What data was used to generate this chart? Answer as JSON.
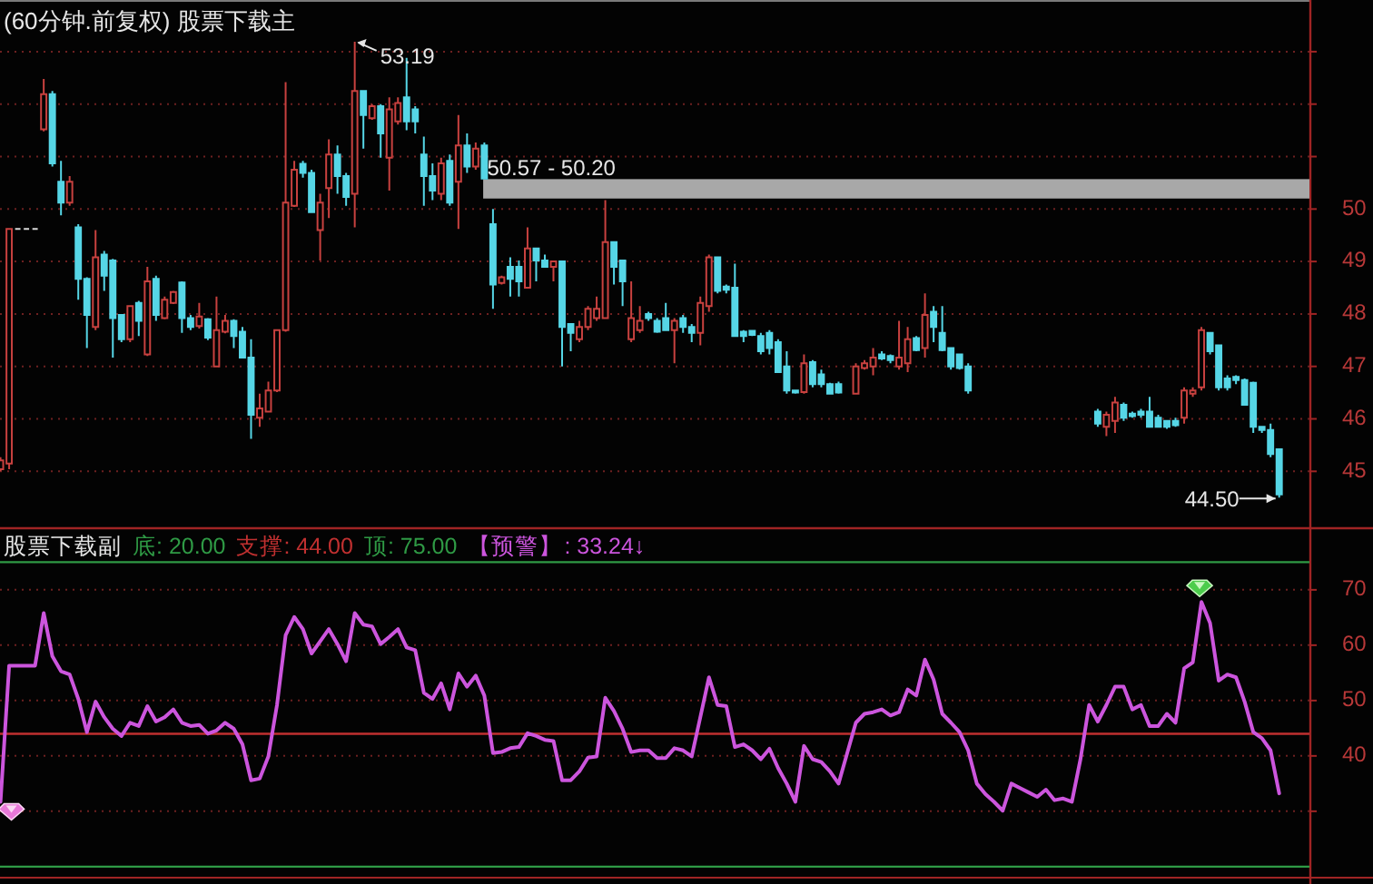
{
  "chart_data": [
    {
      "type": "candlestick",
      "title": "(60分钟.前复权) 股票下载主",
      "categories": [
        null,
        null,
        null,
        null,
        null,
        null,
        null,
        null,
        null,
        null,
        null,
        null,
        null,
        null,
        null,
        null,
        null,
        null,
        null,
        null,
        null,
        null,
        null,
        null,
        null,
        null,
        null,
        null,
        null,
        null,
        null,
        null,
        null,
        null,
        null,
        null,
        null,
        null,
        null,
        null,
        null,
        null,
        null,
        null,
        null,
        null,
        null,
        null,
        null,
        null,
        null,
        null,
        null,
        null,
        null,
        null,
        null,
        null,
        null,
        null,
        null,
        null,
        null,
        null,
        null,
        null,
        null,
        null,
        null,
        null,
        null,
        null,
        null,
        null,
        null,
        null,
        null,
        null,
        null,
        null,
        null,
        null,
        null,
        null,
        null,
        null,
        null,
        null,
        null,
        null,
        null,
        null,
        null,
        null,
        null,
        null,
        null,
        null,
        null,
        null,
        null,
        null,
        null,
        null,
        null,
        null,
        null,
        null,
        null,
        null,
        null,
        null,
        null,
        null,
        null,
        null,
        null,
        null,
        null,
        null,
        null,
        null,
        null,
        null,
        null,
        null,
        null,
        null,
        null,
        null,
        null,
        null,
        null,
        null,
        null,
        null,
        null,
        null,
        null,
        null,
        null,
        null,
        null,
        null,
        null,
        null,
        null,
        null,
        null
      ],
      "ohlc": [
        [
          45.04,
          45.27,
          45.0,
          45.21
        ],
        [
          45.15,
          49.62,
          45.04,
          49.62
        ],
        [
          49.62,
          49.62,
          49.62,
          49.62
        ],
        [
          49.62,
          49.62,
          49.62,
          49.62
        ],
        [
          49.62,
          49.62,
          49.62,
          49.62
        ],
        [
          51.52,
          52.48,
          51.48,
          52.19
        ],
        [
          52.19,
          52.25,
          50.81,
          50.87
        ],
        [
          50.52,
          50.92,
          49.88,
          50.12
        ],
        [
          50.12,
          50.63,
          50.06,
          50.52
        ],
        [
          49.65,
          49.71,
          48.27,
          48.67
        ],
        [
          48.67,
          48.7,
          47.35,
          47.98
        ],
        [
          47.75,
          49.6,
          47.69,
          49.08
        ],
        [
          49.13,
          49.2,
          48.44,
          48.73
        ],
        [
          49.02,
          49.05,
          47.17,
          47.92
        ],
        [
          47.98,
          48.0,
          47.46,
          47.52
        ],
        [
          47.52,
          48.15,
          47.46,
          48.15
        ],
        [
          48.21,
          48.25,
          47.58,
          47.87
        ],
        [
          47.23,
          48.9,
          47.2,
          48.62
        ],
        [
          48.67,
          48.73,
          47.87,
          47.98
        ],
        [
          47.92,
          48.33,
          47.9,
          48.27
        ],
        [
          48.21,
          48.44,
          48.19,
          48.42
        ],
        [
          48.6,
          48.62,
          47.64,
          47.92
        ],
        [
          47.92,
          47.98,
          47.69,
          47.75
        ],
        [
          47.77,
          48.21,
          47.72,
          47.95
        ],
        [
          47.9,
          47.92,
          47.5,
          47.55
        ],
        [
          47.0,
          48.33,
          47.0,
          47.69
        ],
        [
          47.66,
          47.98,
          47.63,
          47.87
        ],
        [
          47.87,
          47.9,
          47.35,
          47.58
        ],
        [
          47.66,
          47.75,
          47.17,
          47.17
        ],
        [
          47.17,
          47.52,
          45.62,
          46.08
        ],
        [
          46.02,
          46.48,
          45.85,
          46.2
        ],
        [
          46.14,
          46.71,
          46.14,
          46.54
        ],
        [
          46.54,
          47.69,
          46.51,
          47.69
        ],
        [
          47.69,
          52.42,
          47.66,
          50.12
        ],
        [
          50.06,
          50.92,
          50.04,
          50.75
        ],
        [
          50.86,
          50.92,
          50.6,
          50.69
        ],
        [
          50.69,
          50.75,
          49.94,
          49.94
        ],
        [
          49.6,
          50.29,
          49.02,
          50.12
        ],
        [
          50.4,
          51.33,
          49.83,
          51.04
        ],
        [
          51.04,
          51.21,
          50.29,
          50.63
        ],
        [
          50.63,
          50.69,
          50.06,
          50.23
        ],
        [
          50.29,
          53.19,
          49.65,
          52.25
        ],
        [
          52.25,
          52.25,
          51.15,
          51.79
        ],
        [
          51.73,
          52.0,
          51.7,
          51.96
        ],
        [
          51.96,
          52.0,
          50.98,
          51.44
        ],
        [
          50.98,
          52.13,
          50.35,
          51.9
        ],
        [
          51.67,
          52.13,
          51.61,
          52.02
        ],
        [
          52.13,
          52.88,
          51.5,
          51.67
        ],
        [
          51.9,
          51.96,
          51.44,
          51.67
        ],
        [
          51.04,
          51.38,
          50.06,
          50.63
        ],
        [
          50.63,
          50.87,
          50.17,
          50.35
        ],
        [
          50.29,
          50.98,
          50.17,
          50.87
        ],
        [
          50.92,
          51.04,
          50.06,
          50.12
        ],
        [
          50.52,
          51.79,
          49.62,
          51.21
        ],
        [
          51.21,
          51.44,
          50.69,
          50.81
        ],
        [
          50.81,
          51.27,
          50.75,
          51.15
        ],
        [
          51.21,
          51.27,
          50.58,
          50.58
        ],
        [
          49.71,
          50.0,
          48.1,
          48.56
        ],
        [
          48.59,
          48.73,
          48.56,
          48.7
        ],
        [
          48.9,
          49.08,
          48.33,
          48.67
        ],
        [
          48.9,
          49.02,
          48.33,
          48.62
        ],
        [
          48.5,
          49.65,
          48.5,
          49.25
        ],
        [
          49.25,
          49.25,
          48.62,
          49.02
        ],
        [
          49.02,
          49.13,
          48.9,
          48.9
        ],
        [
          48.9,
          49.0,
          48.62,
          49.0
        ],
        [
          49.0,
          49.02,
          47.0,
          47.75
        ],
        [
          47.81,
          47.81,
          47.29,
          47.64
        ],
        [
          47.52,
          47.87,
          47.46,
          47.75
        ],
        [
          47.75,
          48.15,
          47.69,
          48.1
        ],
        [
          47.92,
          48.33,
          47.87,
          48.1
        ],
        [
          47.92,
          50.17,
          47.92,
          49.37
        ],
        [
          49.37,
          49.37,
          48.56,
          48.9
        ],
        [
          49.02,
          49.02,
          48.15,
          48.62
        ],
        [
          47.52,
          48.62,
          47.46,
          47.92
        ],
        [
          47.69,
          48.15,
          47.64,
          47.87
        ],
        [
          48.0,
          48.04,
          47.87,
          47.92
        ],
        [
          47.87,
          47.92,
          47.64,
          47.66
        ],
        [
          47.92,
          48.21,
          47.69,
          47.69
        ],
        [
          47.69,
          47.92,
          47.06,
          47.87
        ],
        [
          47.92,
          47.98,
          47.64,
          47.75
        ],
        [
          47.75,
          47.81,
          47.46,
          47.64
        ],
        [
          47.64,
          48.33,
          47.4,
          48.21
        ],
        [
          48.15,
          49.13,
          48.04,
          49.08
        ],
        [
          49.08,
          49.08,
          48.39,
          48.44
        ],
        [
          48.52,
          48.56,
          48.39,
          48.46
        ],
        [
          48.5,
          48.96,
          47.58,
          47.58
        ],
        [
          47.66,
          47.69,
          47.46,
          47.58
        ],
        [
          47.68,
          47.69,
          47.58,
          47.6
        ],
        [
          47.58,
          47.64,
          47.23,
          47.29
        ],
        [
          47.64,
          47.69,
          47.23,
          47.35
        ],
        [
          47.46,
          47.52,
          46.89,
          46.89
        ],
        [
          47.0,
          47.29,
          46.48,
          46.54
        ],
        [
          46.54,
          46.54,
          46.48,
          46.5
        ],
        [
          46.51,
          47.23,
          46.48,
          47.06
        ],
        [
          47.08,
          47.12,
          46.6,
          46.66
        ],
        [
          46.85,
          46.94,
          46.6,
          46.66
        ],
        [
          46.66,
          46.69,
          46.48,
          46.48
        ],
        [
          46.66,
          46.71,
          46.48,
          46.5
        ],
        null,
        [
          46.48,
          47.06,
          46.48,
          47.0
        ],
        [
          46.97,
          47.12,
          46.94,
          47.06
        ],
        [
          47.0,
          47.35,
          46.83,
          47.17
        ],
        [
          47.23,
          47.29,
          47.12,
          47.15
        ],
        [
          47.2,
          47.23,
          47.06,
          47.12
        ],
        [
          47.0,
          47.87,
          46.94,
          47.17
        ],
        [
          47.06,
          47.75,
          46.89,
          47.52
        ],
        [
          47.54,
          47.58,
          47.29,
          47.31
        ],
        [
          47.35,
          48.39,
          47.17,
          47.98
        ],
        [
          48.04,
          48.15,
          47.46,
          47.75
        ],
        [
          47.64,
          48.15,
          47.29,
          47.31
        ],
        [
          47.35,
          47.35,
          46.94,
          47.0
        ],
        [
          47.23,
          47.23,
          46.94,
          46.97
        ],
        [
          47.0,
          47.06,
          46.48,
          46.54
        ],
        null,
        null,
        null,
        null,
        null,
        null,
        null,
        null,
        null,
        null,
        null,
        null,
        null,
        null,
        [
          46.14,
          46.19,
          45.85,
          45.91
        ],
        [
          45.85,
          46.14,
          45.67,
          46.08
        ],
        [
          45.96,
          46.42,
          45.73,
          46.31
        ],
        [
          46.27,
          46.31,
          45.96,
          46.02
        ],
        [
          46.1,
          46.14,
          46.02,
          46.05
        ],
        [
          46.14,
          46.19,
          46.02,
          46.08
        ],
        [
          46.14,
          46.42,
          45.85,
          45.85
        ],
        [
          46.02,
          46.08,
          45.85,
          45.85
        ],
        [
          45.96,
          45.96,
          45.81,
          45.85
        ],
        [
          45.96,
          46.02,
          45.85,
          45.88
        ],
        [
          46.02,
          46.6,
          45.91,
          46.54
        ],
        [
          46.48,
          46.6,
          46.42,
          46.54
        ],
        [
          46.6,
          47.75,
          46.54,
          47.69
        ],
        [
          47.64,
          47.64,
          47.23,
          47.29
        ],
        [
          47.4,
          47.4,
          46.54,
          46.6
        ],
        [
          46.77,
          46.83,
          46.54,
          46.6
        ],
        [
          46.8,
          46.83,
          46.66,
          46.74
        ],
        [
          46.74,
          46.77,
          46.25,
          46.27
        ],
        [
          46.69,
          46.71,
          45.73,
          45.85
        ],
        [
          45.85,
          45.85,
          45.73,
          45.79
        ],
        [
          45.79,
          45.91,
          45.27,
          45.33
        ],
        [
          45.42,
          45.44,
          44.5,
          44.56
        ]
      ],
      "colors": [
        "#c8413f",
        "#c8413f",
        "#d8d8d8",
        "#d8d8d8",
        "#d8d8d8",
        "#c8413f",
        "#56d6e6",
        "#56d6e6",
        "#c8413f",
        "#56d6e6",
        "#56d6e6",
        "#c8413f",
        "#56d6e6",
        "#56d6e6",
        "#56d6e6",
        "#c8413f",
        "#56d6e6",
        "#c8413f",
        "#56d6e6",
        "#c8413f",
        "#c8413f",
        "#56d6e6",
        "#56d6e6",
        "#c8413f",
        "#56d6e6",
        "#c8413f",
        "#c8413f",
        "#56d6e6",
        "#56d6e6",
        "#56d6e6",
        "#c8413f",
        "#c8413f",
        "#c8413f",
        "#c8413f",
        "#c8413f",
        "#56d6e6",
        "#56d6e6",
        "#c8413f",
        "#c8413f",
        "#56d6e6",
        "#56d6e6",
        "#c8413f",
        "#56d6e6",
        "#c8413f",
        "#56d6e6",
        "#c8413f",
        "#c8413f",
        "#56d6e6",
        "#56d6e6",
        "#56d6e6",
        "#56d6e6",
        "#c8413f",
        "#56d6e6",
        "#c8413f",
        "#56d6e6",
        "#c8413f",
        "#56d6e6",
        "#56d6e6",
        "#c8413f",
        "#56d6e6",
        "#56d6e6",
        "#c8413f",
        "#56d6e6",
        "#56d6e6",
        "#c8413f",
        "#56d6e6",
        "#56d6e6",
        "#c8413f",
        "#c8413f",
        "#c8413f",
        "#c8413f",
        "#56d6e6",
        "#56d6e6",
        "#c8413f",
        "#c8413f",
        "#56d6e6",
        "#56d6e6",
        "#56d6e6",
        "#c8413f",
        "#56d6e6",
        "#56d6e6",
        "#c8413f",
        "#c8413f",
        "#56d6e6",
        "#56d6e6",
        "#56d6e6",
        "#56d6e6",
        "#56d6e6",
        "#56d6e6",
        "#56d6e6",
        "#56d6e6",
        "#56d6e6",
        "#56d6e6",
        "#c8413f",
        "#56d6e6",
        "#56d6e6",
        "#56d6e6",
        "#56d6e6",
        null,
        "#c8413f",
        "#c8413f",
        "#c8413f",
        "#56d6e6",
        "#56d6e6",
        "#c8413f",
        "#c8413f",
        "#56d6e6",
        "#c8413f",
        "#56d6e6",
        "#56d6e6",
        "#56d6e6",
        "#56d6e6",
        "#56d6e6",
        null,
        null,
        null,
        null,
        null,
        null,
        null,
        null,
        null,
        null,
        null,
        null,
        null,
        null,
        "#56d6e6",
        "#c8413f",
        "#c8413f",
        "#56d6e6",
        "#56d6e6",
        "#56d6e6",
        "#56d6e6",
        "#56d6e6",
        "#56d6e6",
        "#56d6e6",
        "#c8413f",
        "#c8413f",
        "#c8413f",
        "#56d6e6",
        "#56d6e6",
        "#56d6e6",
        "#56d6e6",
        "#56d6e6",
        "#56d6e6",
        "#56d6e6",
        "#56d6e6",
        "#56d6e6"
      ],
      "ylim": [
        43.95,
        53.95
      ],
      "yticks": [
        45,
        46,
        47,
        48,
        49,
        50,
        {
          "value": 51,
          "label": null
        },
        {
          "value": 52,
          "label": null
        },
        {
          "value": 53,
          "label": null
        }
      ],
      "grid": "y",
      "tick_labels": "y",
      "bands": [
        {
          "axis": "y",
          "from": 50.2,
          "to": 50.57,
          "label": "50.57 - 50.20",
          "color": "#a8a8a8"
        }
      ],
      "annotations": [
        "53.19",
        "44.50"
      ]
    },
    {
      "type": "line",
      "title": "股票下载副",
      "categories": [
        null,
        null,
        null,
        null,
        null,
        null,
        null,
        null,
        null,
        null,
        null,
        null,
        null,
        null,
        null,
        null,
        null,
        null,
        null,
        null,
        null,
        null,
        null,
        null,
        null,
        null,
        null,
        null,
        null,
        null,
        null,
        null,
        null,
        null,
        null,
        null,
        null,
        null,
        null,
        null,
        null,
        null,
        null,
        null,
        null,
        null,
        null,
        null,
        null,
        null,
        null,
        null,
        null,
        null,
        null,
        null,
        null,
        null,
        null,
        null,
        null,
        null,
        null,
        null,
        null,
        null,
        null,
        null,
        null,
        null,
        null,
        null,
        null,
        null,
        null,
        null,
        null,
        null,
        null,
        null,
        null,
        null,
        null,
        null,
        null,
        null,
        null,
        null,
        null,
        null,
        null,
        null,
        null,
        null,
        null,
        null,
        null,
        null,
        null,
        null,
        null,
        null,
        null,
        null,
        null,
        null,
        null,
        null,
        null,
        null,
        null,
        null,
        null,
        null,
        null,
        null,
        null,
        null,
        null,
        null,
        null,
        null,
        null,
        null,
        null,
        null,
        null,
        null,
        null,
        null,
        null,
        null,
        null,
        null,
        null,
        null,
        null,
        null,
        null,
        null,
        null,
        null,
        null,
        null,
        null,
        null,
        null,
        null,
        null
      ],
      "series": [
        {
          "name": "【预警】",
          "color": "#cc55dd",
          "values": [
            31.7,
            56.3,
            56.3,
            56.3,
            56.3,
            65.8,
            58.0,
            55.3,
            54.7,
            50.3,
            44.3,
            49.8,
            47.0,
            44.9,
            43.6,
            46.0,
            45.4,
            49.0,
            46.2,
            47.0,
            48.4,
            46.0,
            45.4,
            45.6,
            44.0,
            44.6,
            46.0,
            44.9,
            42.1,
            35.6,
            35.9,
            39.9,
            49.2,
            61.8,
            65.1,
            62.9,
            58.5,
            60.7,
            62.9,
            60.2,
            57.1,
            65.8,
            63.7,
            63.4,
            60.2,
            61.5,
            62.9,
            59.6,
            59.1,
            51.4,
            50.3,
            53.1,
            48.4,
            54.9,
            52.5,
            54.5,
            50.9,
            40.5,
            40.7,
            41.4,
            41.6,
            44.1,
            43.6,
            42.9,
            42.7,
            35.6,
            35.6,
            37.2,
            39.7,
            39.9,
            50.5,
            48.1,
            44.9,
            40.7,
            41.0,
            41.0,
            39.6,
            39.6,
            41.4,
            41.0,
            39.9,
            47.0,
            54.2,
            49.2,
            49.0,
            41.6,
            42.1,
            41.0,
            39.4,
            41.3,
            37.8,
            35.0,
            31.7,
            41.8,
            39.4,
            38.9,
            37.2,
            35.0,
            40.5,
            46.0,
            47.6,
            47.9,
            48.4,
            47.3,
            47.9,
            52.0,
            50.9,
            57.4,
            53.8,
            47.6,
            46.0,
            44.3,
            41.0,
            35.0,
            33.1,
            31.7,
            30.1,
            35.0,
            34.2,
            33.4,
            32.6,
            33.9,
            32.0,
            32.3,
            31.7,
            39.4,
            49.2,
            46.2,
            49.2,
            52.5,
            52.5,
            48.4,
            49.2,
            45.4,
            45.4,
            47.6,
            46.0,
            55.8,
            56.9,
            67.8,
            64.0,
            53.6,
            54.7,
            54.2,
            49.8,
            44.3,
            43.2,
            41.0,
            33.24
          ]
        }
      ],
      "ylim": [
        18.5,
        80.8
      ],
      "yticks": [
        {
          "value": 30,
          "label": null
        },
        40,
        50,
        60,
        70
      ],
      "grid": "y",
      "tick_labels": "y",
      "ref_lines": [
        {
          "axis": "y",
          "value": 20,
          "label": "底: 20.00",
          "color": "#2f9a45"
        },
        {
          "axis": "y",
          "value": 44,
          "label": "支撑: 44.00",
          "color": "#c03030"
        },
        {
          "axis": "y",
          "value": 75,
          "label": "顶: 75.00",
          "color": "#2f9a45"
        }
      ],
      "annotations": [
        ": 33.24↓"
      ]
    }
  ]
}
